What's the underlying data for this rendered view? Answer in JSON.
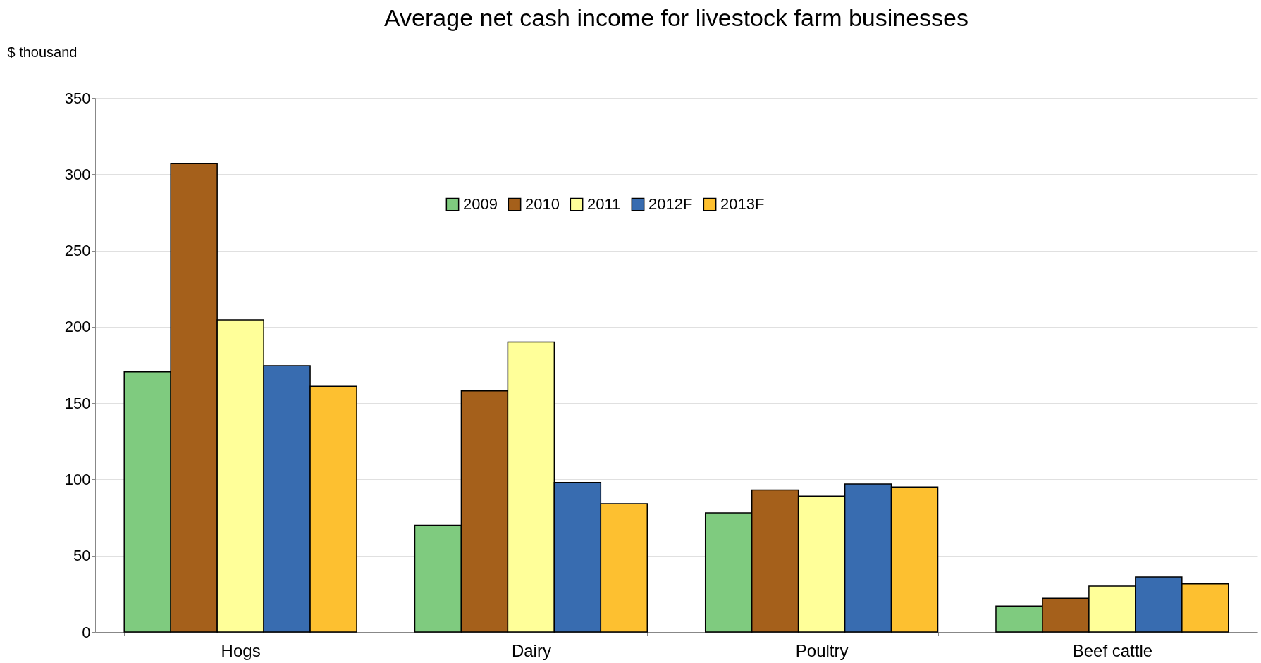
{
  "chart_data": {
    "type": "bar",
    "title": "Average net cash income for livestock farm businesses",
    "ylabel": "$ thousand",
    "categories": [
      "Hogs",
      "Dairy",
      "Poultry",
      "Beef cattle"
    ],
    "series": [
      {
        "name": "2009",
        "color": "#7fcb7f",
        "values": [
          170.5,
          70,
          78,
          17
        ]
      },
      {
        "name": "2010",
        "color": "#a5601b",
        "values": [
          307,
          158,
          93,
          22
        ]
      },
      {
        "name": "2011",
        "color": "#ffff99",
        "values": [
          204.5,
          190,
          89,
          30
        ]
      },
      {
        "name": "2012F",
        "color": "#386cb0",
        "values": [
          174.5,
          98,
          97,
          36
        ]
      },
      {
        "name": "2013F",
        "color": "#fdc030",
        "values": [
          161,
          84,
          95,
          31.5
        ]
      }
    ],
    "ylim": [
      0,
      350
    ],
    "yticks": [
      0,
      50,
      100,
      150,
      200,
      250,
      300,
      350
    ],
    "grid": "y",
    "legend": "top"
  }
}
